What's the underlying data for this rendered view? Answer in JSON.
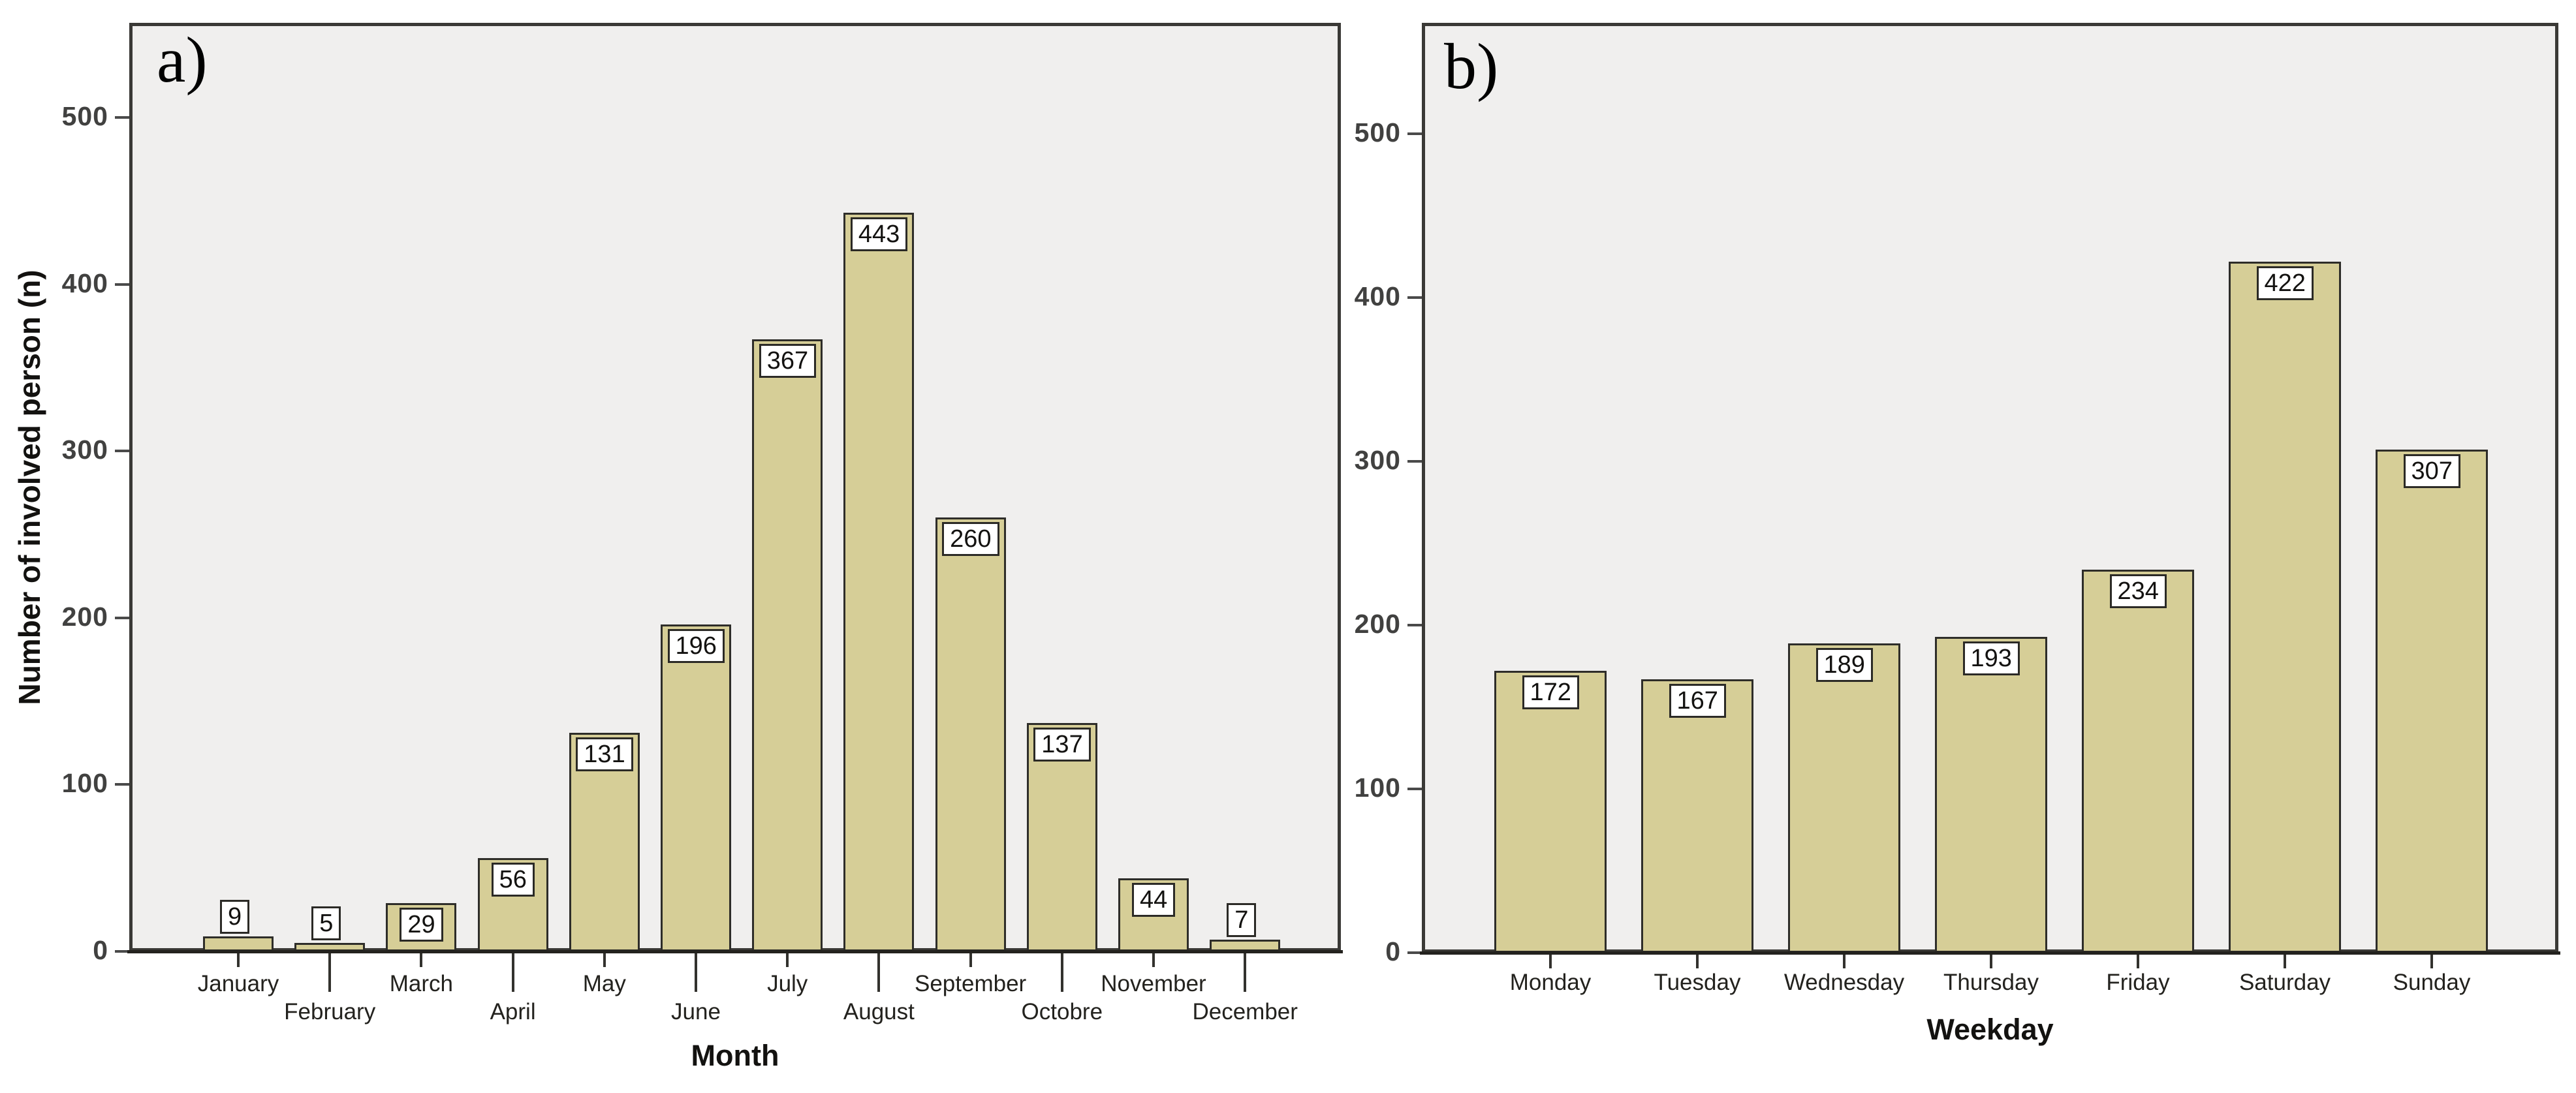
{
  "figure_title": "",
  "colors": {
    "bar_fill": "#d6ce97",
    "bar_border": "#2e2d29",
    "plot_background": "#f0efee",
    "plot_frame": "#3a3936",
    "axis_line": "#23221e",
    "tick_text": "#414140",
    "category_text": "#23221e",
    "value_text": "#131210"
  },
  "chart_data": [
    {
      "type": "bar",
      "id": "a",
      "panel_letter": "a)",
      "title": "",
      "xlabel": "Month",
      "ylabel": "Number of involved person (n)",
      "categories": [
        "January",
        "February",
        "March",
        "April",
        "May",
        "June",
        "July",
        "August",
        "September",
        "Octobre",
        "November",
        "December"
      ],
      "values": [
        9,
        5,
        29,
        56,
        131,
        196,
        367,
        443,
        260,
        137,
        44,
        7
      ],
      "yticks": [
        0,
        100,
        200,
        300,
        400,
        500
      ],
      "ylim": [
        0,
        545
      ],
      "grid": false,
      "legend": "none",
      "staggered_xticks": true,
      "value_labels_boxed": true
    },
    {
      "type": "bar",
      "id": "b",
      "panel_letter": "b)",
      "title": "",
      "xlabel": "Weekday",
      "ylabel": "",
      "categories": [
        "Monday",
        "Tuesday",
        "Wednesday",
        "Thursday",
        "Friday",
        "Saturday",
        "Sunday"
      ],
      "values": [
        172,
        167,
        189,
        193,
        234,
        422,
        307
      ],
      "yticks": [
        0,
        100,
        200,
        300,
        400,
        500
      ],
      "ylim": [
        0,
        545
      ],
      "grid": false,
      "legend": "none",
      "staggered_xticks": false,
      "value_labels_boxed": true
    }
  ]
}
